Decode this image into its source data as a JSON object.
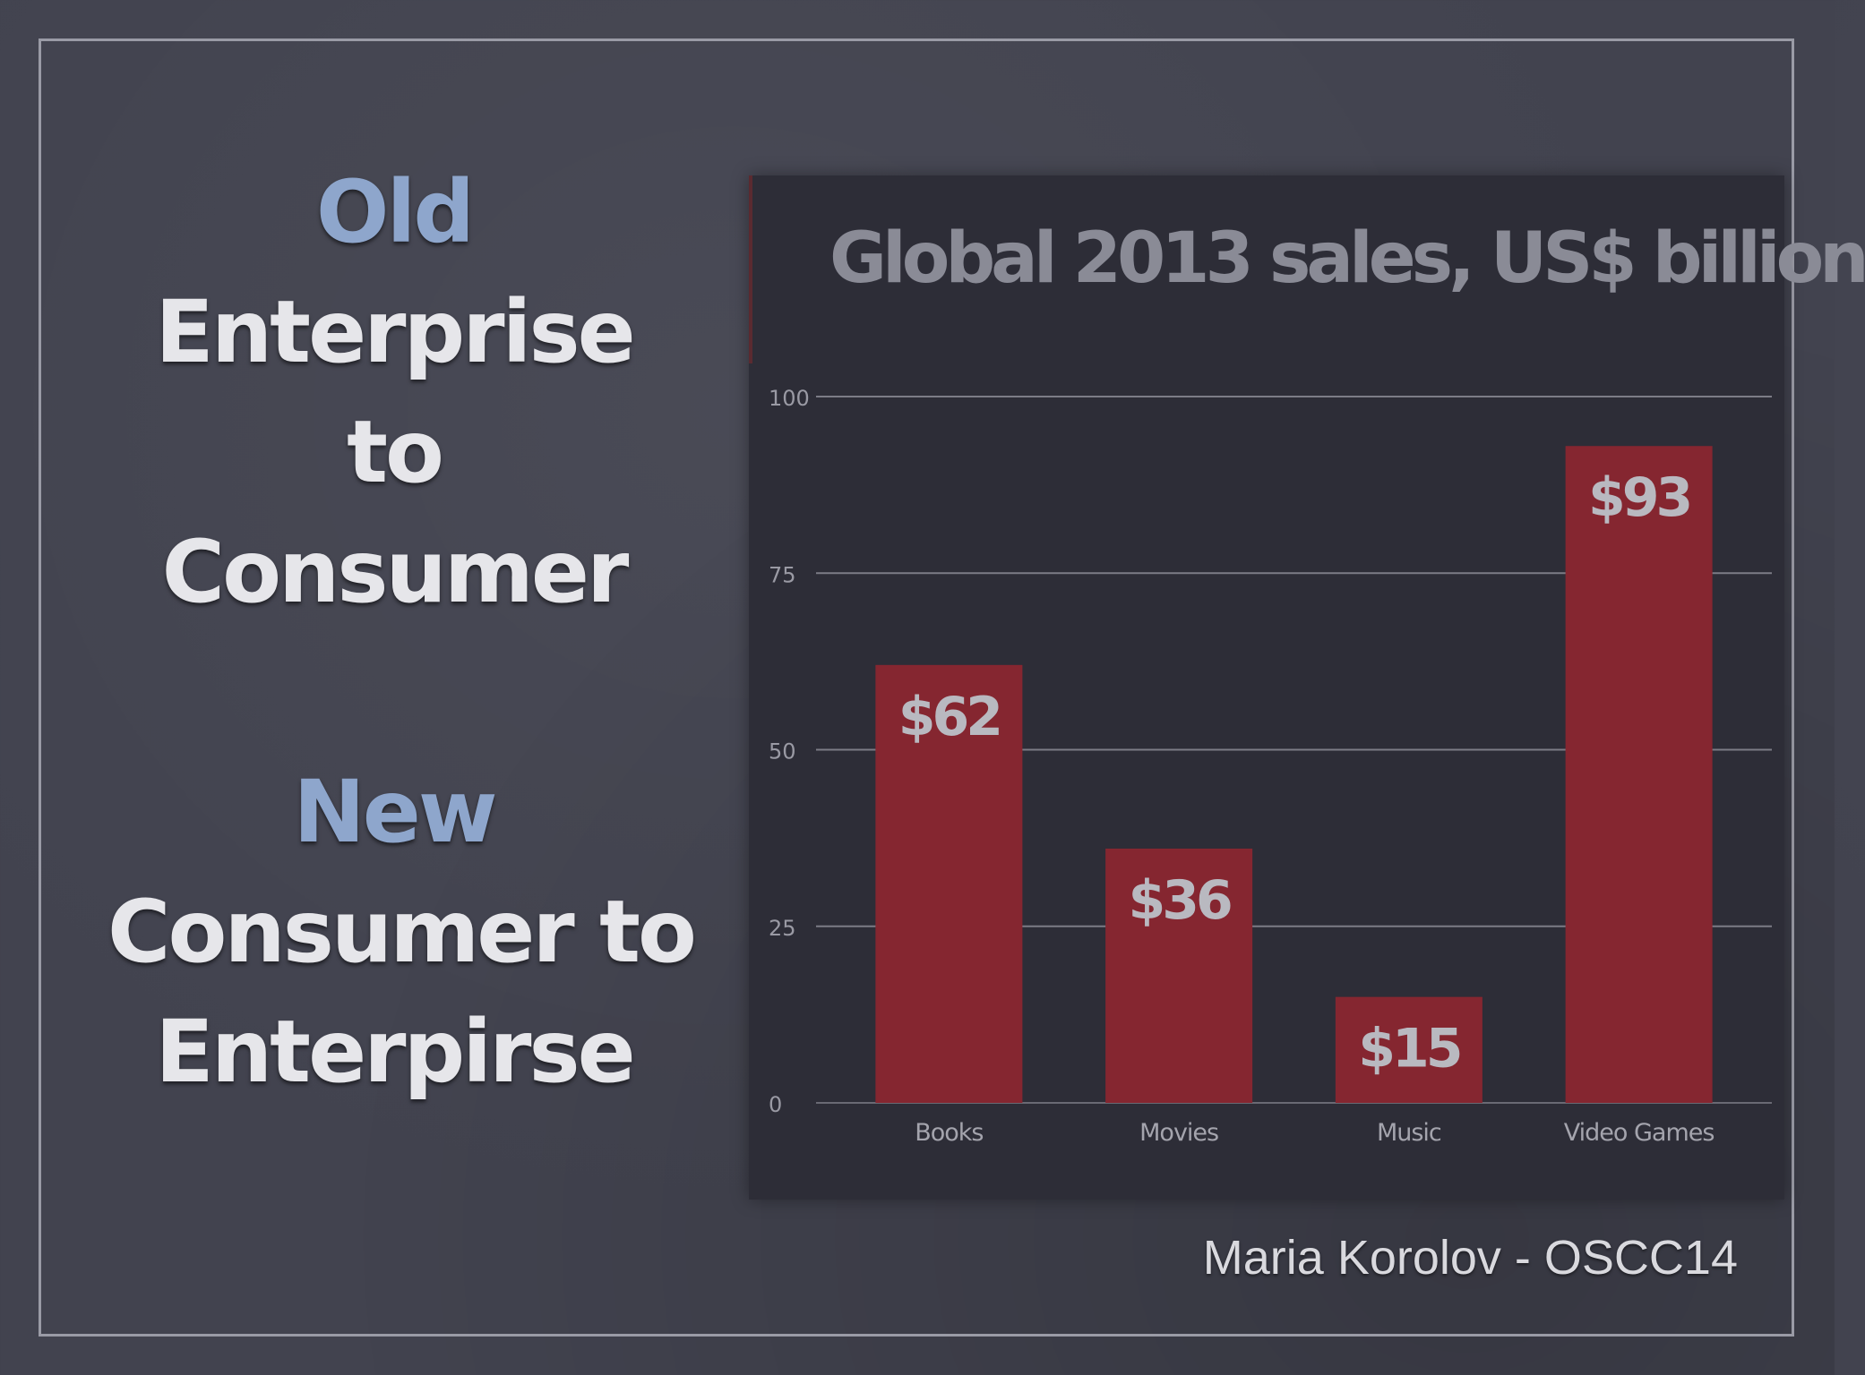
{
  "slide": {
    "old_label": "Old",
    "old_line1": "Enterprise",
    "old_line2": "to",
    "old_line3": "Consumer",
    "new_label": "New",
    "new_line1": "Consumer to",
    "new_line2": "Enterpirse",
    "footer": "Maria Korolov - OSCC14"
  },
  "colors": {
    "background": "#42434f",
    "accent_text": "#8ea6cc",
    "bar": "#852630",
    "chart_panel": "#2d2d37"
  },
  "chart_data": {
    "type": "bar",
    "title": "Global 2013 sales, US$ billion",
    "xlabel": "",
    "ylabel": "",
    "categories": [
      "Books",
      "Movies",
      "Music",
      "Video Games"
    ],
    "values": [
      62,
      36,
      15,
      93
    ],
    "data_labels": [
      "$62",
      "$36",
      "$15",
      "$93"
    ],
    "ylim": [
      0,
      100
    ],
    "yticks": [
      0,
      25,
      50,
      75,
      100
    ],
    "grid": true,
    "legend": "none"
  }
}
